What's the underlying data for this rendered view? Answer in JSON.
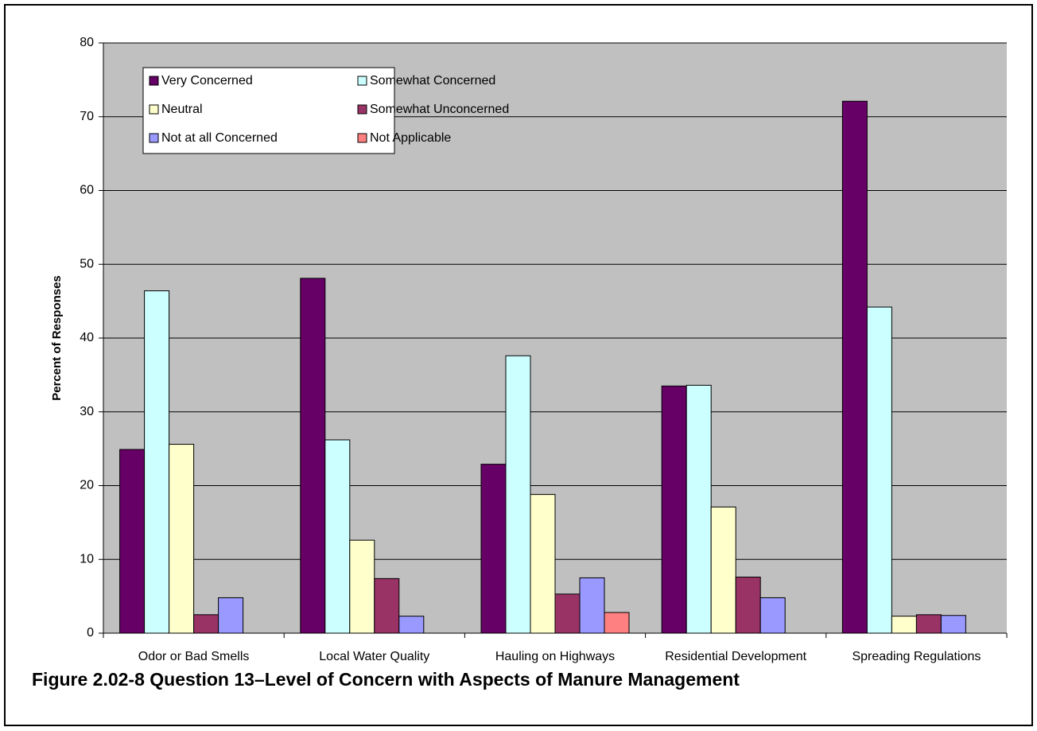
{
  "chart_data": {
    "type": "bar",
    "caption": "Figure 2.02-8  Question 13–Level of Concern with Aspects of Manure Management",
    "ylabel": "Percent of Responses",
    "categories": [
      "Odor or Bad Smells",
      "Local Water Quality",
      "Hauling on Highways",
      "Residential Development",
      "Spreading Regulations"
    ],
    "series": [
      {
        "name": "Very Concerned",
        "color": "#660066",
        "values": [
          24.9,
          48.1,
          22.9,
          33.5,
          72.1
        ]
      },
      {
        "name": "Somewhat Concerned",
        "color": "#ccffff",
        "values": [
          46.4,
          26.2,
          37.6,
          33.6,
          44.2
        ]
      },
      {
        "name": "Neutral",
        "color": "#ffffcc",
        "values": [
          25.6,
          12.6,
          18.8,
          17.1,
          2.3
        ]
      },
      {
        "name": "Somewhat Unconcerned",
        "color": "#993366",
        "values": [
          2.5,
          7.4,
          5.3,
          7.6,
          2.5
        ]
      },
      {
        "name": "Not at all Concerned",
        "color": "#9999ff",
        "values": [
          4.8,
          2.3,
          7.5,
          4.8,
          2.4
        ]
      },
      {
        "name": "Not Applicable",
        "color": "#ff8080",
        "values": [
          0,
          0,
          2.8,
          0,
          0
        ]
      }
    ],
    "ylim": [
      0,
      80
    ],
    "yticks": [
      0,
      10,
      20,
      30,
      40,
      50,
      60,
      70,
      80
    ],
    "grid": true,
    "legend": "upper left"
  }
}
